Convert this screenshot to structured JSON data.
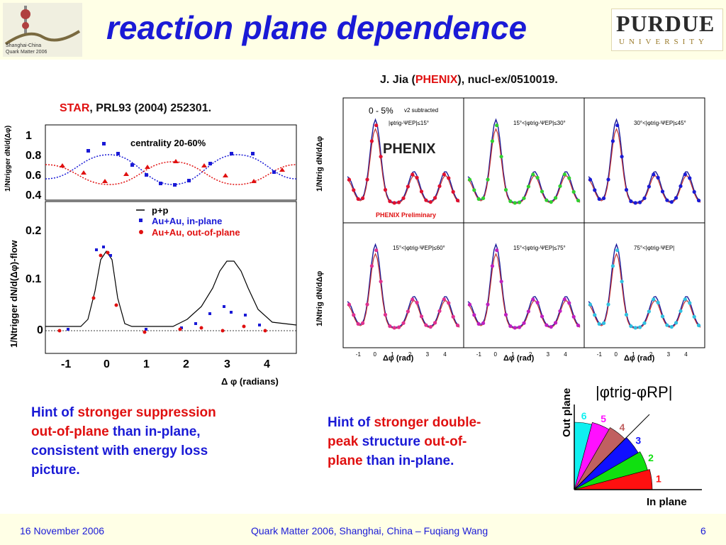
{
  "header": {
    "title": "reaction plane dependence",
    "left_logo_text": [
      "Shanghai-China",
      "Quark Matter 2006"
    ],
    "right_logo_main": "PURDUE",
    "right_logo_sub": "UNIVERSITY"
  },
  "star": {
    "citation_lab": "STAR",
    "citation_rest": ", PRL93 (2004) 252301.",
    "top_panel": {
      "label": "centrality 20-60%",
      "ylabel": "1/Ntrigger dN/d(Δφ)",
      "yticks": [
        "1",
        "0.8",
        "0.6",
        "0.4"
      ]
    },
    "bottom_panel": {
      "ylabel": "1/Ntrigger dN/d(Δφ)-flow",
      "yticks": [
        "0.2",
        "0.1",
        "0"
      ],
      "xticks": [
        "-1",
        "0",
        "1",
        "2",
        "3",
        "4"
      ],
      "xlabel": "Δ φ (radians)",
      "legend": [
        "p+p",
        "Au+Au, in-plane",
        "Au+Au, out-of-plane"
      ]
    }
  },
  "phenix": {
    "citation_pre": "J. Jia (",
    "citation_lab": "PHENIX",
    "citation_post": "), nucl-ex/0510019.",
    "ylabel_top": "1/Ntrig dN/dΔφ",
    "ylabel_bottom": "1/Ntrig dN/dΔφ",
    "xlabel": "Δφ (rad)",
    "xticks": [
      "-1",
      "0",
      "1",
      "2",
      "3",
      "4"
    ],
    "overlay_centrality": "0 - 5%",
    "overlay_v2": "v2 subtracted",
    "logo": "PHENIX",
    "preliminary": "PHENIX Preliminary",
    "panels": [
      {
        "label": "|φtrig-ΨEP|≤15°",
        "color": "#e01030"
      },
      {
        "label": "15°<|φtrig-ΨEP|≤30°",
        "color": "#30d030"
      },
      {
        "label": "30°<|φtrig-ΨEP|≤45°",
        "color": "#1a1ad6"
      },
      {
        "label": "15°<|φtrig-ΨEP|≤60°",
        "color": "#e03090"
      },
      {
        "label": "15°<|φtrig-ΨEP|≤75°",
        "color": "#c020c0"
      },
      {
        "label": "75°<|φtrig-ΨEP|",
        "color": "#30c0e0"
      }
    ]
  },
  "hints": {
    "left": {
      "p1": "Hint of ",
      "r1": "stronger suppression",
      "r2": "out-of-plane",
      "p2": " than in-plane,",
      "p3": "consistent with energy loss",
      "p4": "picture."
    },
    "right": {
      "p1": "Hint of ",
      "r1": "stronger double-",
      "r2": "peak",
      "p2": " structure ",
      "r3": "out-of-",
      "r4": "plane",
      "p3": " than in-plane."
    }
  },
  "angle_diagram": {
    "formula": "|φtrig-φRP|",
    "out_label": "Out plane",
    "in_label": "In plane",
    "wedges": [
      {
        "n": "1",
        "color": "#ff1010"
      },
      {
        "n": "2",
        "color": "#10e010"
      },
      {
        "n": "3",
        "color": "#1010ff"
      },
      {
        "n": "4",
        "color": "#c06060"
      },
      {
        "n": "5",
        "color": "#ff10ff"
      },
      {
        "n": "6",
        "color": "#10f0f0"
      }
    ]
  },
  "footer": {
    "date": "16 November 2006",
    "center": "Quark Matter 2006, Shanghai, China – Fuqiang Wang",
    "page": "6"
  }
}
